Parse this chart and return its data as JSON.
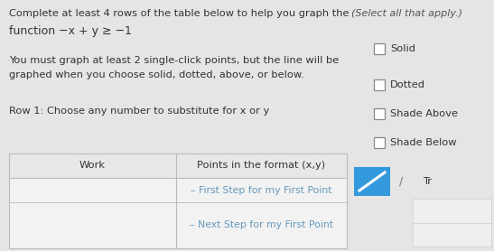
{
  "bg_color": "#e5e5e5",
  "title_line1": "Complete at least 4 rows of the table below to help you graph the",
  "title_line2": "function −x + y ≥ −1",
  "select_text": "(Select all that apply.)",
  "body_line1": "You must graph at least 2 single-click points, but the line will be",
  "body_line2": "graphed when you choose solid, dotted, above, or below.",
  "row_text": "Row 1: Choose any number to substitute for x or y",
  "checkboxes": [
    "Solid",
    "Dotted",
    "Shade Above",
    "Shade Below"
  ],
  "col1_header": "Work",
  "col2_header": "Points in the format (x,y)",
  "row1_text": "– First Step for my First Point",
  "row2_text": "– Next Step for my First Point",
  "button_color": "#3399dd",
  "text_color": "#333333",
  "select_color": "#555555",
  "table_line_color": "#bbbbbb",
  "table_row_color": "#e8e8e8",
  "table_bg": "#f0f0f0",
  "row_text_color": "#6699bb"
}
